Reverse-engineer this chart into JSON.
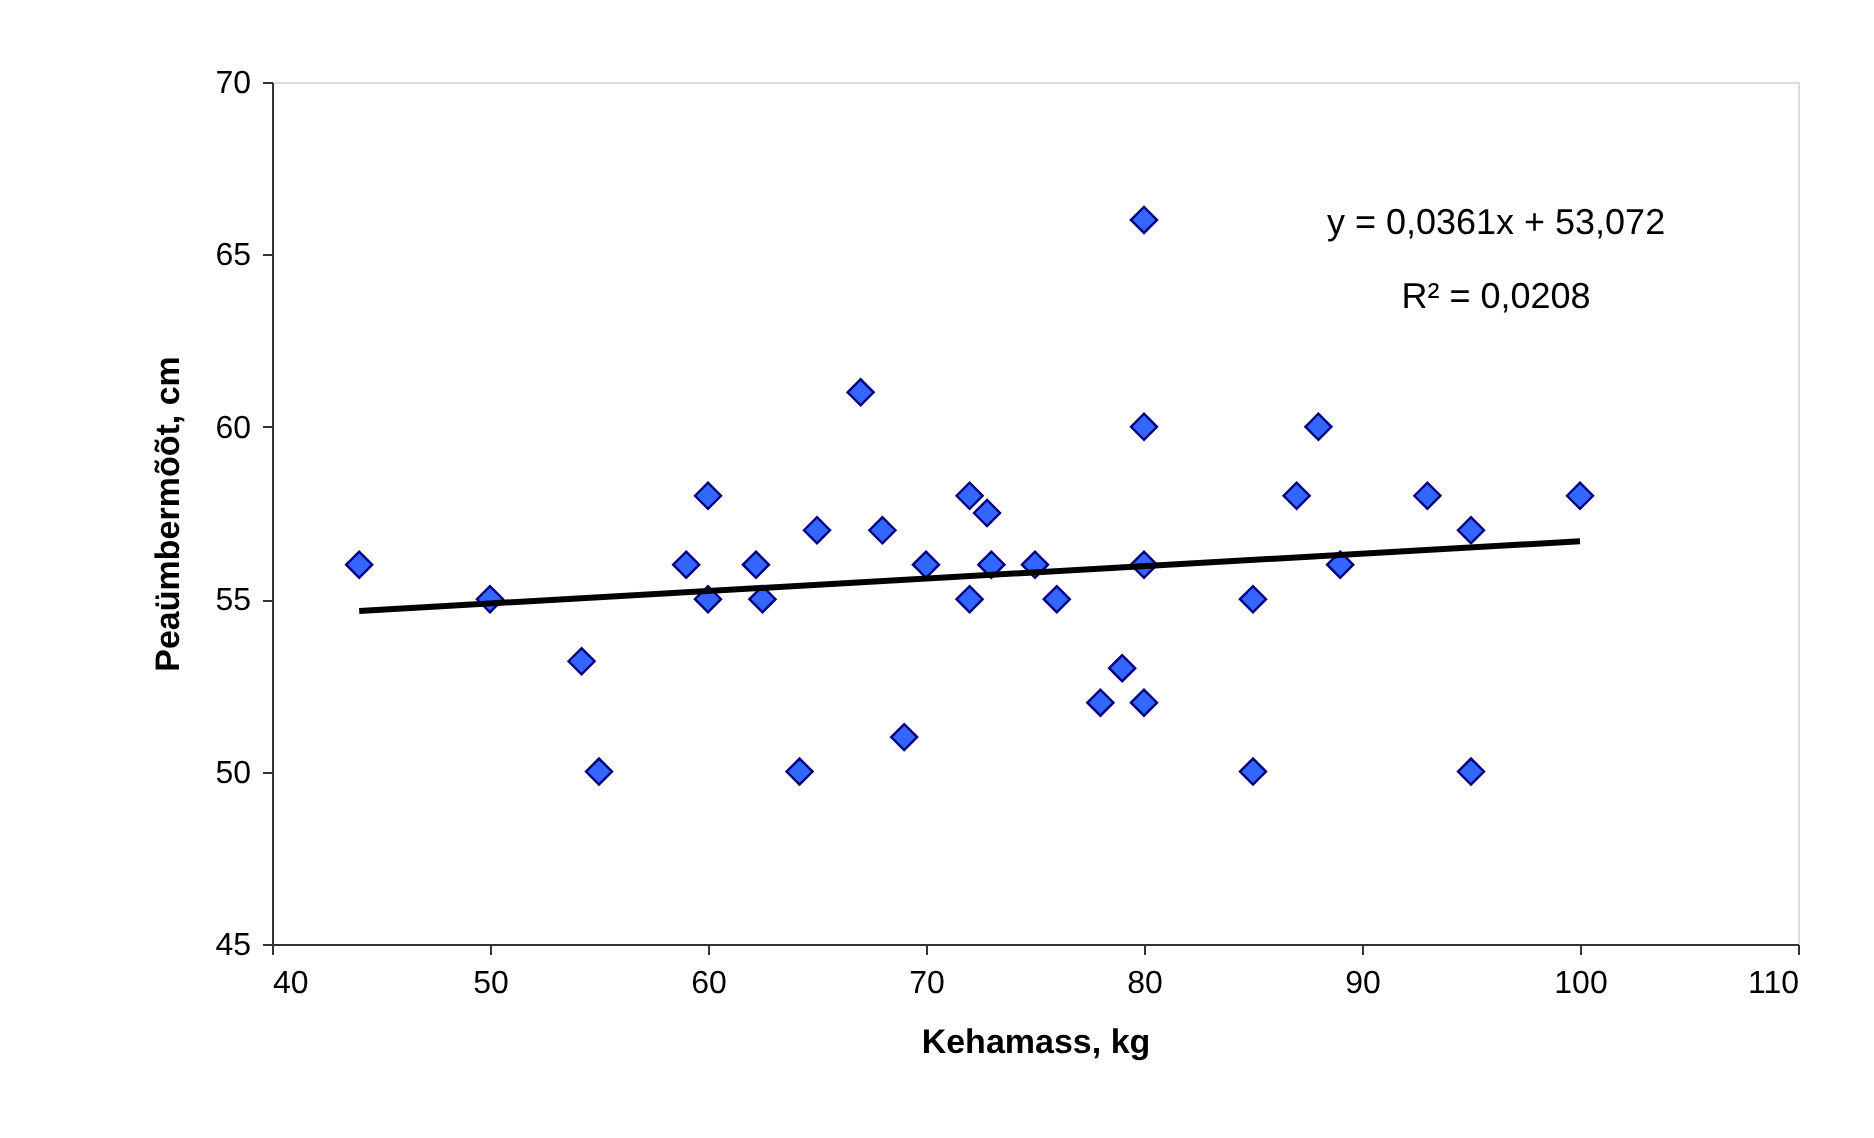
{
  "chart_data": {
    "type": "scatter",
    "xlabel": "Kehamass, kg",
    "ylabel": "Peaümbermõõt, cm",
    "xlim": [
      40,
      110
    ],
    "xticks": [
      40,
      50,
      60,
      70,
      80,
      90,
      100,
      110
    ],
    "ylim": [
      45,
      70
    ],
    "yticks": [
      45,
      50,
      55,
      60,
      65,
      70
    ],
    "grid": false,
    "marker": "diamond",
    "series": [
      {
        "color": "#3366ff",
        "x": [
          44,
          50,
          54.2,
          55,
          59,
          60,
          60,
          62.2,
          62.5,
          64.2,
          65,
          67,
          68,
          69,
          70,
          72,
          72,
          72.8,
          73,
          75,
          76,
          78,
          79,
          80,
          80,
          80,
          80,
          85,
          85,
          87,
          88,
          89,
          93,
          95,
          95,
          100
        ],
        "values": [
          56,
          55,
          53.2,
          50,
          56,
          58,
          55,
          56,
          55,
          50,
          57,
          61,
          57,
          51,
          56,
          58,
          55,
          57.5,
          56,
          56,
          55,
          52,
          53,
          66,
          60,
          56,
          52,
          55,
          50,
          58,
          60,
          56,
          58,
          57,
          50,
          58
        ]
      },
      {
        "type": "line",
        "color": "#000000",
        "line_style": "solid",
        "marker": "none",
        "x": [
          44,
          100
        ],
        "values": [
          54.66,
          56.68
        ]
      }
    ],
    "annotations": [
      "y = 0,0361x + 53,072",
      "R² = 0,0208"
    ]
  }
}
